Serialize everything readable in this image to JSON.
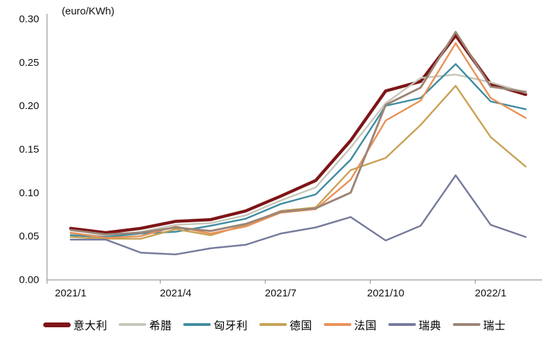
{
  "chart_data": {
    "type": "line",
    "title": "(euro/KWh)",
    "x": [
      "2021/1",
      "2021/2",
      "2021/3",
      "2021/4",
      "2021/5",
      "2021/6",
      "2021/7",
      "2021/8",
      "2021/9",
      "2021/10",
      "2021/11",
      "2021/12",
      "2022/1",
      "2022/2"
    ],
    "x_tick_labels": [
      "2021/1",
      "2021/4",
      "2021/7",
      "2021/10",
      "2022/1"
    ],
    "y_ticks": [
      "0.00",
      "0.05",
      "0.10",
      "0.15",
      "0.20",
      "0.25",
      "0.30"
    ],
    "ylim": [
      0,
      0.3
    ],
    "y_step": 0.05,
    "grid": false,
    "legend_position": "bottom",
    "axis_color": "#9a9a9a",
    "text_color": "#111111",
    "series": [
      {
        "key": "italy",
        "name": "意大利",
        "color": "#7E1517",
        "width": 4.5,
        "values": [
          0.059,
          0.054,
          0.059,
          0.067,
          0.069,
          0.079,
          0.096,
          0.114,
          0.16,
          0.217,
          0.228,
          0.281,
          0.225,
          0.213
        ]
      },
      {
        "key": "greece",
        "name": "希腊",
        "color": "#C6C7BA",
        "width": 2.5,
        "values": [
          0.053,
          0.05,
          0.055,
          0.063,
          0.065,
          0.074,
          0.091,
          0.106,
          0.152,
          0.203,
          0.232,
          0.236,
          0.227,
          0.215
        ]
      },
      {
        "key": "hungary",
        "name": "匈牙利",
        "color": "#3F8CA0",
        "width": 2.5,
        "values": [
          0.051,
          0.049,
          0.053,
          0.055,
          0.062,
          0.07,
          0.087,
          0.098,
          0.138,
          0.2,
          0.209,
          0.248,
          0.205,
          0.196
        ]
      },
      {
        "key": "germany",
        "name": "德国",
        "color": "#C8A255",
        "width": 2.5,
        "values": [
          0.049,
          0.047,
          0.047,
          0.058,
          0.051,
          0.063,
          0.079,
          0.083,
          0.126,
          0.14,
          0.178,
          0.223,
          0.164,
          0.13
        ]
      },
      {
        "key": "france",
        "name": "法国",
        "color": "#E89158",
        "width": 2.5,
        "values": [
          0.054,
          0.048,
          0.05,
          0.061,
          0.053,
          0.061,
          0.077,
          0.081,
          0.115,
          0.183,
          0.206,
          0.272,
          0.209,
          0.186
        ]
      },
      {
        "key": "sweden",
        "name": "瑞典",
        "color": "#757A9C",
        "width": 2.5,
        "values": [
          0.046,
          0.046,
          0.031,
          0.029,
          0.036,
          0.04,
          0.053,
          0.06,
          0.072,
          0.045,
          0.062,
          0.12,
          0.063,
          0.049
        ]
      },
      {
        "key": "swiss",
        "name": "瑞士",
        "color": "#9C8577",
        "width": 3.0,
        "values": [
          0.057,
          0.052,
          0.054,
          0.06,
          0.056,
          0.064,
          0.078,
          0.082,
          0.1,
          0.201,
          0.221,
          0.285,
          0.222,
          0.216
        ]
      }
    ]
  }
}
